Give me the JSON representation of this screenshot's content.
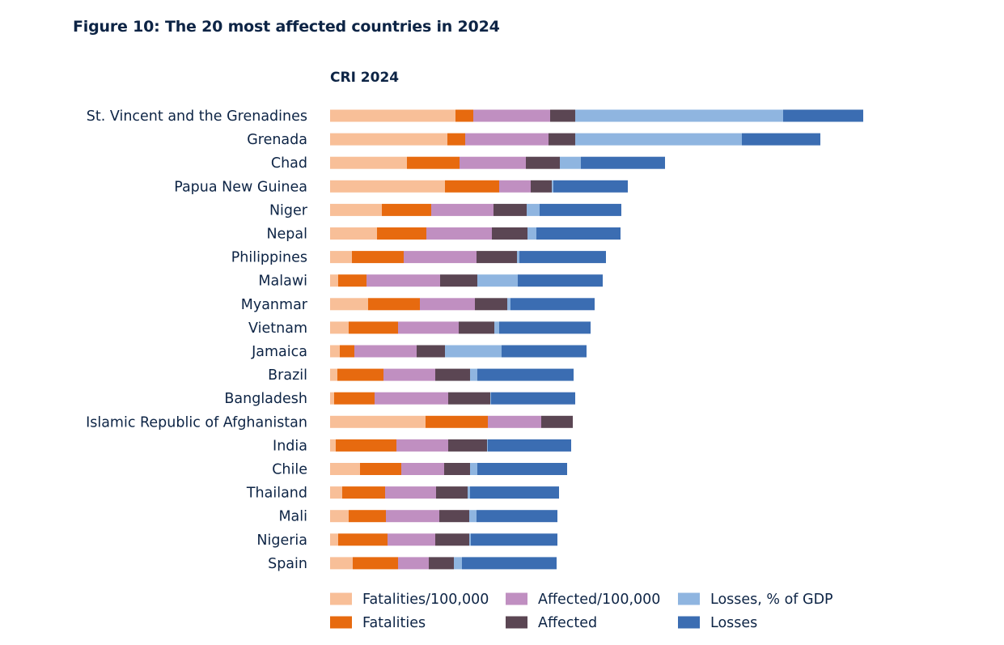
{
  "title": "Figure 10: The 20 most affected countries in 2024",
  "chart_data": {
    "type": "bar",
    "orientation": "horizontal",
    "stacked": true,
    "subtitle": "CRI 2024",
    "categories": [
      "St. Vincent and the Grenadines",
      "Grenada",
      "Chad",
      "Papua New Guinea",
      "Niger",
      "Nepal",
      "Philippines",
      "Malawi",
      "Myanmar",
      "Vietnam",
      "Jamaica",
      "Brazil",
      "Bangladesh",
      "Islamic Republic of Afghanistan",
      "India",
      "Chile",
      "Thailand",
      "Mali",
      "Nigeria",
      "Spain"
    ],
    "series": [
      {
        "name": "Fatalities/100,000",
        "color": "#f8bf98",
        "values": [
          155,
          145,
          95,
          142,
          64,
          58,
          27,
          10,
          47,
          23,
          12,
          9,
          5,
          118,
          7,
          37,
          15,
          23,
          10,
          28
        ]
      },
      {
        "name": "Fatalities",
        "color": "#e76a0f",
        "values": [
          22,
          22,
          65,
          67,
          61,
          61,
          64,
          35,
          64,
          61,
          18,
          57,
          50,
          77,
          75,
          51,
          53,
          46,
          61,
          56
        ]
      },
      {
        "name": "Affected/100,000",
        "color": "#c08fc1",
        "values": [
          95,
          103,
          82,
          39,
          77,
          81,
          90,
          91,
          68,
          75,
          77,
          64,
          91,
          66,
          64,
          53,
          63,
          66,
          59,
          38
        ]
      },
      {
        "name": "Affected",
        "color": "#5b4653",
        "values": [
          31,
          33,
          42,
          26,
          41,
          44,
          50,
          46,
          40,
          44,
          35,
          43,
          52,
          39,
          48,
          32,
          39,
          37,
          42,
          31
        ]
      },
      {
        "name": "Losses, % of GDP",
        "color": "#8fb5e0",
        "values": [
          257,
          206,
          26,
          2,
          16,
          11,
          3,
          50,
          4,
          6,
          70,
          9,
          1,
          0,
          1,
          9,
          3,
          9,
          2,
          10
        ]
      },
      {
        "name": "Losses",
        "color": "#3b6db2",
        "values": [
          99,
          97,
          104,
          92,
          101,
          104,
          107,
          105,
          104,
          113,
          105,
          119,
          104,
          0,
          103,
          111,
          110,
          100,
          107,
          117
        ]
      }
    ],
    "xlabel": "",
    "ylabel": "",
    "xlim": [
      0,
      700
    ],
    "grid": false,
    "legend_position": "bottom"
  }
}
